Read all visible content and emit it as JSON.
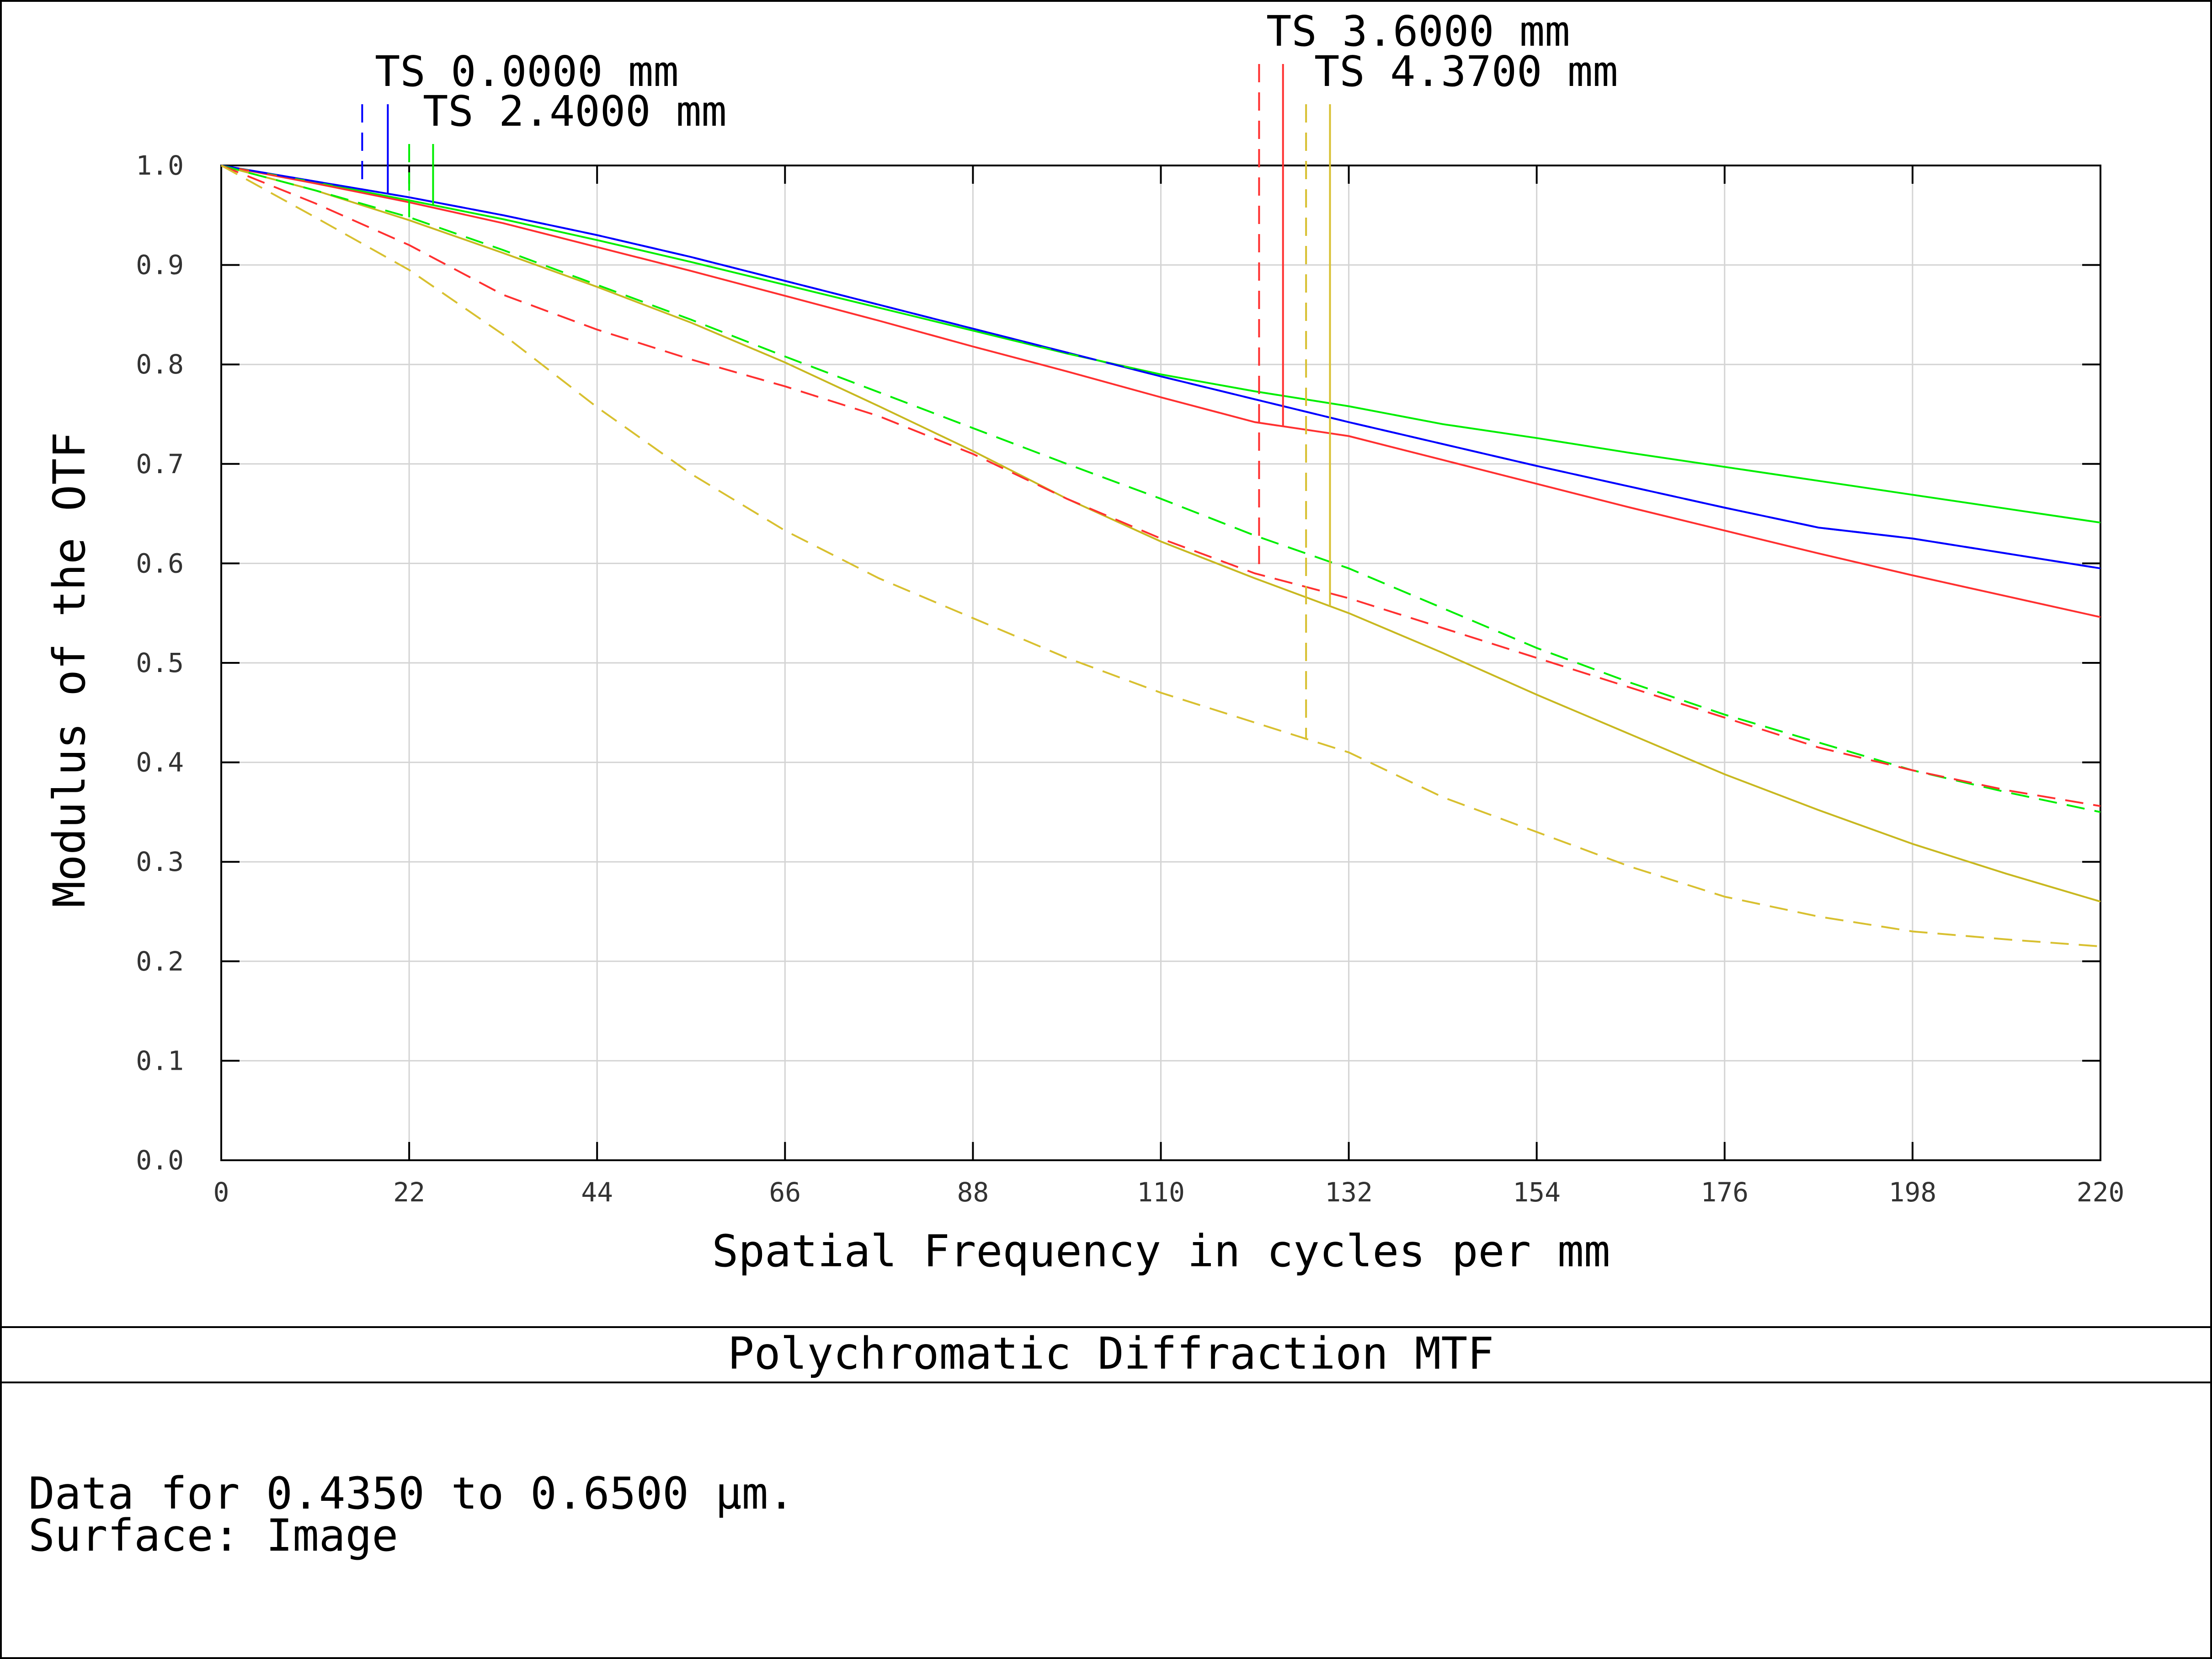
{
  "chart_data": {
    "type": "line",
    "title": "Polychromatic Diffraction MTF",
    "xlabel": "Spatial Frequency in cycles per mm",
    "ylabel": "Modulus of the OTF",
    "xlim": [
      0,
      220
    ],
    "ylim": [
      0,
      1.0
    ],
    "xticks": [
      0,
      22,
      44,
      66,
      88,
      110,
      132,
      154,
      176,
      198,
      220
    ],
    "yticks": [
      0.0,
      0.1,
      0.2,
      0.3,
      0.4,
      0.5,
      0.6,
      0.7,
      0.8,
      0.9,
      1.0
    ],
    "xtick_labels": [
      "0",
      "22",
      "44",
      "66",
      "88",
      "110",
      "132",
      "154",
      "176",
      "198",
      "220"
    ],
    "ytick_labels": [
      "0.0",
      "0.1",
      "0.2",
      "0.3",
      "0.4",
      "0.5",
      "0.6",
      "0.7",
      "0.8",
      "0.9",
      "1.0"
    ],
    "grid": true,
    "x": [
      0,
      11,
      22,
      33,
      44,
      55,
      66,
      77,
      88,
      99,
      110,
      121,
      132,
      143,
      154,
      165,
      176,
      187,
      198,
      209,
      220
    ],
    "series": [
      {
        "field": "TS 0.0000 mm",
        "orientation": "T",
        "color": "#0000ff",
        "dash": true,
        "values": [
          1.0,
          0.984,
          0.968,
          0.95,
          0.93,
          0.908,
          0.884,
          0.86,
          0.836,
          0.812,
          0.788,
          0.765,
          0.742,
          0.72,
          0.698,
          0.677,
          0.656,
          0.636,
          0.625,
          0.61,
          0.595
        ]
      },
      {
        "field": "TS 0.0000 mm",
        "orientation": "S",
        "color": "#0000ff",
        "dash": false,
        "values": [
          1.0,
          0.984,
          0.968,
          0.95,
          0.93,
          0.908,
          0.884,
          0.86,
          0.836,
          0.812,
          0.788,
          0.765,
          0.742,
          0.72,
          0.698,
          0.677,
          0.656,
          0.636,
          0.625,
          0.61,
          0.595
        ]
      },
      {
        "field": "TS 2.4000 mm",
        "orientation": "T",
        "color": "#00ee00",
        "dash": true,
        "values": [
          1.0,
          0.975,
          0.948,
          0.915,
          0.88,
          0.845,
          0.808,
          0.772,
          0.736,
          0.7,
          0.665,
          0.628,
          0.595,
          0.555,
          0.515,
          0.48,
          0.448,
          0.42,
          0.392,
          0.37,
          0.35
        ]
      },
      {
        "field": "TS 2.4000 mm",
        "orientation": "S",
        "color": "#00ee00",
        "dash": false,
        "values": [
          1.0,
          0.983,
          0.965,
          0.946,
          0.925,
          0.903,
          0.88,
          0.857,
          0.834,
          0.811,
          0.79,
          0.773,
          0.758,
          0.74,
          0.726,
          0.711,
          0.697,
          0.683,
          0.669,
          0.655,
          0.641
        ]
      },
      {
        "field": "TS 3.6000 mm",
        "orientation": "T",
        "color": "#ff3030",
        "dash": true,
        "values": [
          1.0,
          0.962,
          0.92,
          0.87,
          0.835,
          0.805,
          0.778,
          0.748,
          0.71,
          0.665,
          0.625,
          0.59,
          0.565,
          0.535,
          0.505,
          0.475,
          0.445,
          0.415,
          0.392,
          0.372,
          0.356
        ]
      },
      {
        "field": "TS 3.6000 mm",
        "orientation": "S",
        "color": "#ff3030",
        "dash": false,
        "values": [
          1.0,
          0.982,
          0.963,
          0.942,
          0.918,
          0.894,
          0.869,
          0.844,
          0.818,
          0.793,
          0.767,
          0.742,
          0.728,
          0.704,
          0.68,
          0.656,
          0.633,
          0.61,
          0.588,
          0.567,
          0.546
        ]
      },
      {
        "field": "TS 4.3700 mm",
        "orientation": "T",
        "color": "#d8c030",
        "dash": true,
        "values": [
          1.0,
          0.948,
          0.895,
          0.83,
          0.757,
          0.69,
          0.633,
          0.585,
          0.545,
          0.505,
          0.47,
          0.44,
          0.41,
          0.365,
          0.33,
          0.295,
          0.265,
          0.245,
          0.23,
          0.222,
          0.215
        ]
      },
      {
        "field": "TS 4.3700 mm",
        "orientation": "S",
        "color": "#c8b820",
        "dash": false,
        "values": [
          1.0,
          0.975,
          0.945,
          0.912,
          0.878,
          0.842,
          0.802,
          0.758,
          0.713,
          0.665,
          0.622,
          0.585,
          0.55,
          0.51,
          0.468,
          0.428,
          0.388,
          0.352,
          0.318,
          0.288,
          0.26
        ]
      }
    ],
    "legend_labels": [
      {
        "text": "TS 0.0000 mm",
        "color": "#0000ff",
        "marker_x": [
          16.5,
          19.5
        ]
      },
      {
        "text": "TS 2.4000 mm",
        "color": "#00ee00",
        "marker_x": [
          22.0,
          24.8
        ]
      },
      {
        "text": "TS 3.6000 mm",
        "color": "#ff3030",
        "marker_x": [
          121.5,
          124.3
        ]
      },
      {
        "text": "TS 4.3700 mm",
        "color": "#d8c030",
        "marker_x": [
          127.0,
          129.8
        ]
      }
    ]
  },
  "info": {
    "line1": "Data for 0.4350 to 0.6500 µm.",
    "line2": "Surface: Image"
  }
}
